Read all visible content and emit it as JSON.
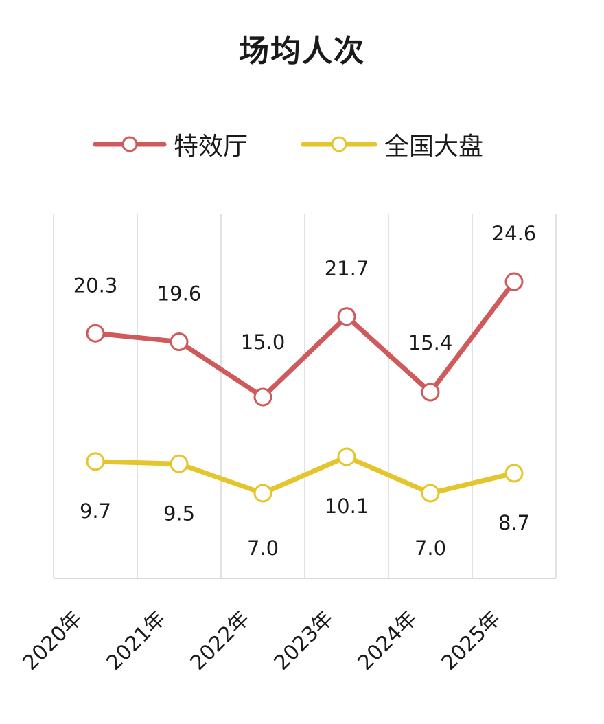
{
  "chart_data": {
    "type": "line",
    "title": "场均人次",
    "categories": [
      "2020年",
      "2021年",
      "2022年",
      "2023年",
      "2024年",
      "2025年"
    ],
    "series": [
      {
        "name": "特效厅",
        "color": "#cf5a5c",
        "values": [
          20.3,
          19.6,
          15.0,
          21.7,
          15.4,
          24.6
        ],
        "labels": [
          "20.3",
          "19.6",
          "15.0",
          "21.7",
          "15.4",
          "24.6"
        ]
      },
      {
        "name": "全国大盘",
        "color": "#e5c52c",
        "values": [
          9.7,
          9.5,
          7.0,
          10.1,
          7.0,
          8.7
        ],
        "labels": [
          "9.7",
          "9.5",
          "7.0",
          "10.1",
          "7.0",
          "8.7"
        ]
      }
    ],
    "xlabel": "",
    "ylabel": "",
    "grid": "vertical",
    "legend": "top-center",
    "marker": "open-circle"
  }
}
